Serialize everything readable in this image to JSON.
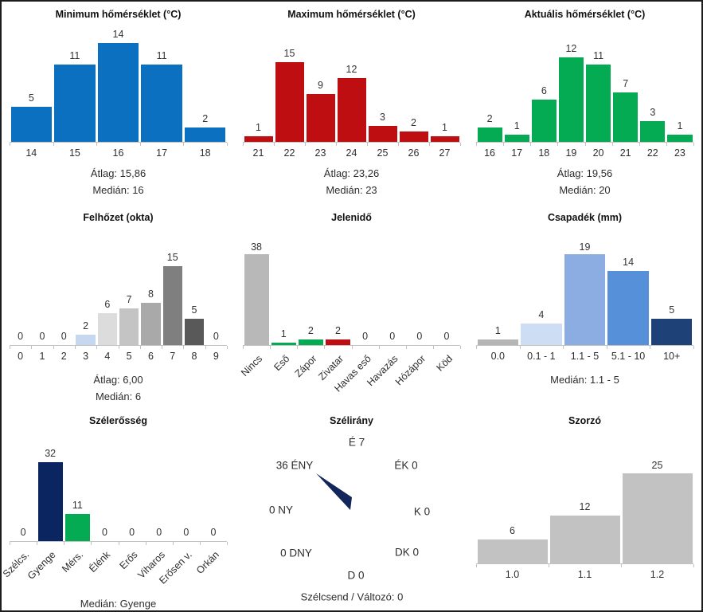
{
  "figure": {
    "background": "#ffffff",
    "border_color": "#1d1d1d",
    "axis_color": "#c2c2c2",
    "text_color": "#2d2d2d",
    "title_color": "#111111"
  },
  "chart_data": [
    {
      "type": "bar",
      "title": "Minimum hőmérséklet (°C)",
      "categories": [
        "14",
        "15",
        "16",
        "17",
        "18"
      ],
      "values": [
        5,
        11,
        14,
        11,
        2
      ],
      "color": "#0b70c0",
      "ylim": [
        0,
        17
      ],
      "rotated_labels": false,
      "footers": [
        "Átlag: 15,86",
        "Medián: 16"
      ]
    },
    {
      "type": "bar",
      "title": "Maximum hőmérséklet (°C)",
      "categories": [
        "21",
        "22",
        "23",
        "24",
        "25",
        "26",
        "27"
      ],
      "values": [
        1,
        15,
        9,
        12,
        3,
        2,
        1
      ],
      "color": "#bf0e12",
      "ylim": [
        0,
        22.5
      ],
      "rotated_labels": false,
      "footers": [
        "Átlag: 23,26",
        "Medián: 23"
      ]
    },
    {
      "type": "bar",
      "title": "Aktuális hőmérséklet (°C)",
      "categories": [
        "16",
        "17",
        "18",
        "19",
        "20",
        "21",
        "22",
        "23"
      ],
      "values": [
        2,
        1,
        6,
        12,
        11,
        7,
        3,
        1
      ],
      "color": "#04ab52",
      "ylim": [
        0,
        17
      ],
      "rotated_labels": false,
      "footers": [
        "Átlag: 19,56",
        "Medián: 20"
      ]
    },
    {
      "type": "bar",
      "title": "Felhőzet (okta)",
      "categories": [
        "0",
        "1",
        "2",
        "3",
        "4",
        "5",
        "6",
        "7",
        "8",
        "9"
      ],
      "values": [
        0,
        0,
        0,
        2,
        6,
        7,
        8,
        15,
        5,
        0
      ],
      "colors": [
        "#e8eef7",
        "#dbe6f4",
        "#cfdef2",
        "#c5d8f0",
        "#dcdcdc",
        "#c4c4c4",
        "#a9a9a9",
        "#7f7f7f",
        "#595959",
        "#404040"
      ],
      "ylim": [
        0,
        19.7
      ],
      "rotated_labels": false,
      "footers": [
        "Átlag: 6,00",
        "Medián: 6"
      ]
    },
    {
      "type": "bar",
      "title": "Jelenidő",
      "categories": [
        "Nincs",
        "Eső",
        "Zápor",
        "Zivatar",
        "Havas eső",
        "Havazás",
        "Hózápor",
        "Köd"
      ],
      "values": [
        38,
        1,
        2,
        2,
        0,
        0,
        0,
        0
      ],
      "colors": [
        "#b8b8b8",
        "#04ab52",
        "#04ab52",
        "#bf0e12",
        "#b8b8b8",
        "#b8b8b8",
        "#b8b8b8",
        "#b8b8b8"
      ],
      "ylim": [
        0,
        39
      ],
      "rotated_labels": true,
      "footers": []
    },
    {
      "type": "bar",
      "title": "Csapadék (mm)",
      "categories": [
        "0.0",
        "0.1 - 1",
        "1.1 - 5",
        "5.1 - 10",
        "10+"
      ],
      "values": [
        1,
        4,
        19,
        14,
        5
      ],
      "colors": [
        "#b5b5b5",
        "#cdddf3",
        "#8bade1",
        "#5590d8",
        "#1e4277"
      ],
      "ylim": [
        0,
        19.5
      ],
      "rotated_labels": false,
      "footers": [
        "Medián: 1.1 - 5"
      ]
    },
    {
      "type": "bar",
      "title": "Szélerősség",
      "categories": [
        "Szélcs.",
        "Gyenge",
        "Mérs.",
        "Élénk",
        "Erős",
        "Viharos",
        "Erősen v.",
        "Orkán"
      ],
      "values": [
        0,
        32,
        11,
        0,
        0,
        0,
        0,
        0
      ],
      "colors": [
        "#b8b8b8",
        "#0a2560",
        "#04ab52",
        "#b8b8b8",
        "#b8b8b8",
        "#b8b8b8",
        "#b8b8b8",
        "#b8b8b8"
      ],
      "ylim": [
        0,
        42
      ],
      "rotated_labels": true,
      "footers": [
        "Medián: Gyenge"
      ]
    },
    {
      "type": "compass",
      "title": "Szélirány",
      "points": [
        {
          "dir": "n",
          "label": "É",
          "value": 7,
          "value_first": false
        },
        {
          "dir": "ne",
          "label": "ÉK",
          "value": 0,
          "value_first": false
        },
        {
          "dir": "e",
          "label": "K",
          "value": 0,
          "value_first": false
        },
        {
          "dir": "se",
          "label": "DK",
          "value": 0,
          "value_first": false
        },
        {
          "dir": "s",
          "label": "D",
          "value": 0,
          "value_first": false
        },
        {
          "dir": "sw",
          "label": "DNY",
          "value": 0,
          "value_first": true
        },
        {
          "dir": "w",
          "label": "NY",
          "value": 0,
          "value_first": true
        },
        {
          "dir": "nw",
          "label": "ÉNY",
          "value": 36,
          "value_first": true
        }
      ],
      "needle_direction": "ÉNY",
      "needle_color": "#13265c",
      "footer": "Szélcsend / Változó: 0"
    },
    {
      "type": "bar",
      "title": "Szorzó",
      "categories": [
        "1.0",
        "1.1",
        "1.2"
      ],
      "values": [
        6,
        12,
        25
      ],
      "color": "#c2c2c2",
      "ylim": [
        0,
        26
      ],
      "rotated_labels": false,
      "footers": []
    }
  ]
}
